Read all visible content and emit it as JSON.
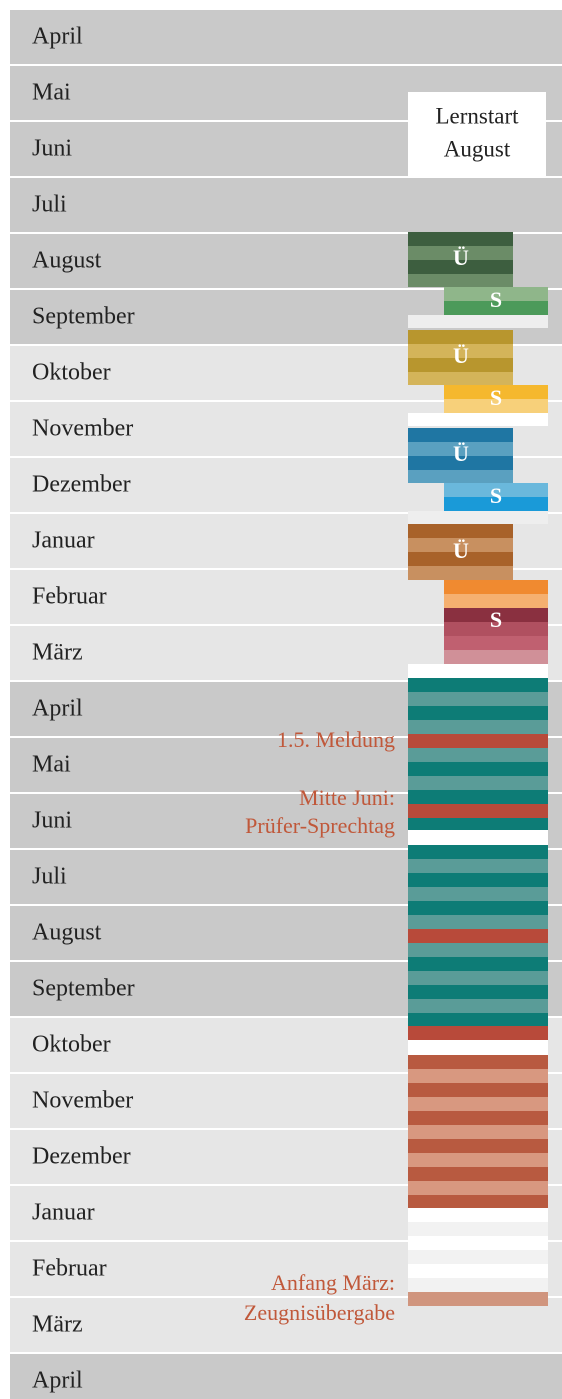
{
  "months": [
    "April",
    "Mai",
    "Juni",
    "Juli",
    "August",
    "September",
    "Oktober",
    "November",
    "Dezember",
    "Januar",
    "Februar",
    "März",
    "April",
    "Mai",
    "Juni",
    "Juli",
    "August",
    "September",
    "Oktober",
    "November",
    "Dezember",
    "Januar",
    "Februar",
    "März",
    "April"
  ],
  "start_box": {
    "line1": "Lernstart",
    "line2": "August"
  },
  "blocks": [
    {
      "u": "Ü",
      "s": "S"
    },
    {
      "u": "Ü",
      "s": "S"
    },
    {
      "u": "Ü",
      "s": "S"
    },
    {
      "u": "Ü",
      "s": "S"
    }
  ],
  "annotations": {
    "meldung": "1.5. Meldung",
    "juni1": "Mitte Juni:",
    "juni2": "Prüfer-Sprechtag",
    "maerz1": "Anfang März:",
    "maerz2": "Zeugnisübergabe"
  }
}
